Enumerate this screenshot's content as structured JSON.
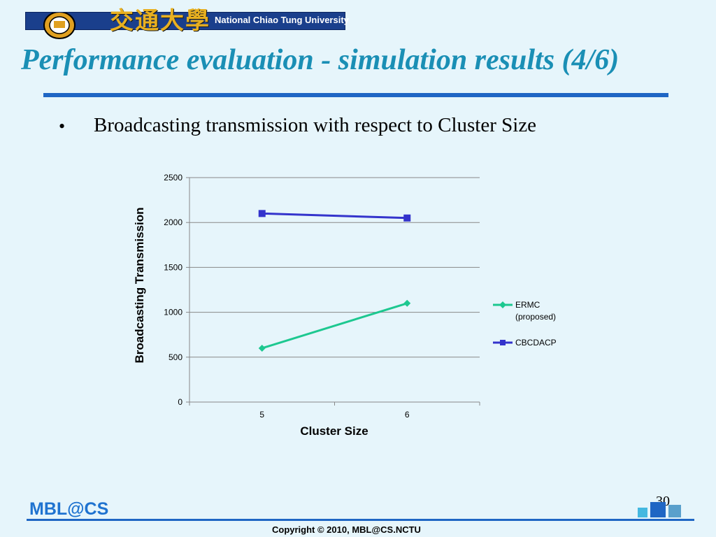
{
  "header": {
    "university_cn": "交通大學",
    "university_en": "National Chiao Tung University"
  },
  "slide": {
    "title": "Performance evaluation - simulation results (4/6)",
    "bullet": "Broadcasting transmission with respect to Cluster Size",
    "page_number": "30"
  },
  "footer": {
    "logo_text": "MBL@CS",
    "copyright": "Copyright © 2010, MBL@CS.NCTU"
  },
  "colors": {
    "ermc": "#1dc890",
    "cbcdacp": "#3333cc",
    "title": "#1a8fb5",
    "rule": "#1f66c4"
  },
  "chart_data": {
    "type": "line",
    "categories": [
      "5",
      "6"
    ],
    "series": [
      {
        "name": "ERMC (proposed)",
        "values": [
          600,
          1100
        ],
        "marker": "diamond",
        "color": "#1dc890"
      },
      {
        "name": "CBCDACP",
        "values": [
          2100,
          2050
        ],
        "marker": "square",
        "color": "#3333cc"
      }
    ],
    "xlabel": "Cluster Size",
    "ylabel": "Broadcasting Transmission",
    "ylim": [
      0,
      2500
    ],
    "yticks": [
      0,
      500,
      1000,
      1500,
      2000,
      2500
    ],
    "grid": true,
    "legend": "right"
  }
}
